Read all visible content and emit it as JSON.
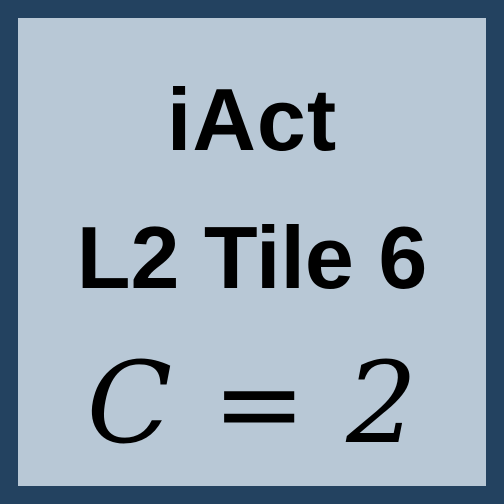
{
  "tile": {
    "title": "iAct",
    "subtitle": "L2 Tile 6",
    "formula": {
      "variable": "C",
      "operator": "=",
      "value": "2"
    },
    "colors": {
      "border": "#234260",
      "background": "#b8c8d6",
      "text": "#000000"
    }
  }
}
